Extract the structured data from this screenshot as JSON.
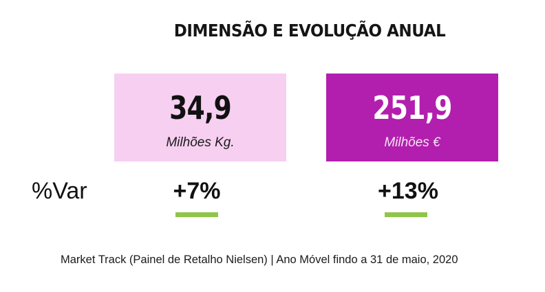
{
  "title": "DIMENSÃO E EVOLUÇÃO ANUAL",
  "cards": [
    {
      "value": "34,9",
      "unit": "Milhões Kg.",
      "background": "#f6cff1",
      "value_color": "#111111",
      "unit_color": "#1a1a1a"
    },
    {
      "value": "251,9",
      "unit": "Milhões €",
      "background": "#b21fae",
      "value_color": "#ffffff",
      "unit_color": "#f3e6f2"
    }
  ],
  "variation": {
    "label": "%Var",
    "values": [
      "+7%",
      "+13%"
    ],
    "bar_color": "#8fc64a"
  },
  "source": "Market Track (Painel de Retalho Nielsen) | Ano Móvel findo a 31 de maio, 2020"
}
